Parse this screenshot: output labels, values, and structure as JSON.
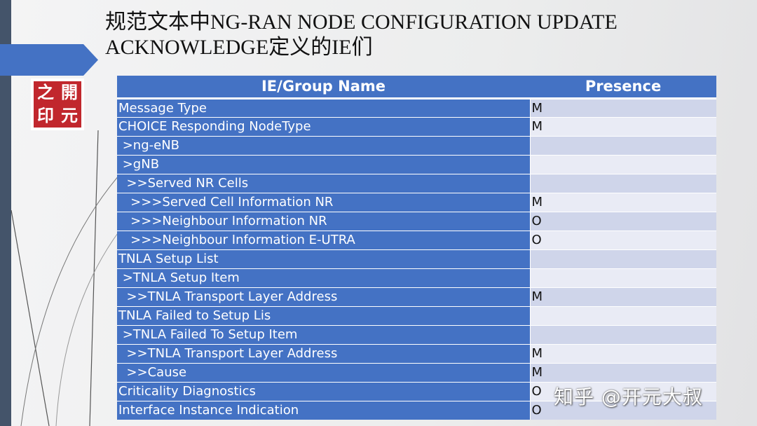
{
  "title": {
    "line1": "规范文本中NG-RAN NODE CONFIGURATION UPDATE",
    "line2": "ACKNOWLEDGE定义的IE们"
  },
  "logo": {
    "chars": [
      "之",
      "開",
      "印",
      "元"
    ]
  },
  "table": {
    "headers": [
      "IE/Group Name",
      "Presence"
    ],
    "rows": [
      {
        "name": "Message Type",
        "presence": "M"
      },
      {
        "name": "CHOICE Responding NodeType",
        "presence": "M"
      },
      {
        "name": " >ng-eNB",
        "presence": ""
      },
      {
        "name": " >gNB",
        "presence": ""
      },
      {
        "name": "  >>Served NR Cells",
        "presence": ""
      },
      {
        "name": "   >>>Served Cell Information NR",
        "presence": "M"
      },
      {
        "name": "   >>>Neighbour Information NR",
        "presence": "O"
      },
      {
        "name": "   >>>Neighbour Information E-UTRA",
        "presence": "O"
      },
      {
        "name": "TNLA Setup List",
        "presence": ""
      },
      {
        "name": " >TNLA Setup Item",
        "presence": ""
      },
      {
        "name": "  >>TNLA Transport Layer Address",
        "presence": "M"
      },
      {
        "name": "TNLA Failed to Setup Lis",
        "presence": ""
      },
      {
        "name": " >TNLA Failed To Setup Item",
        "presence": ""
      },
      {
        "name": "  >>TNLA Transport Layer Address",
        "presence": "M"
      },
      {
        "name": "  >>Cause",
        "presence": "M"
      },
      {
        "name": "Criticality Diagnostics",
        "presence": "O"
      },
      {
        "name": "Interface Instance Indication",
        "presence": "O"
      }
    ]
  },
  "watermark": "知乎 @开元大叔",
  "colors": {
    "accent": "#4472c4",
    "sidebar": "#44546a",
    "row_odd": "#cfd5ea",
    "row_even": "#e9ebf5"
  }
}
